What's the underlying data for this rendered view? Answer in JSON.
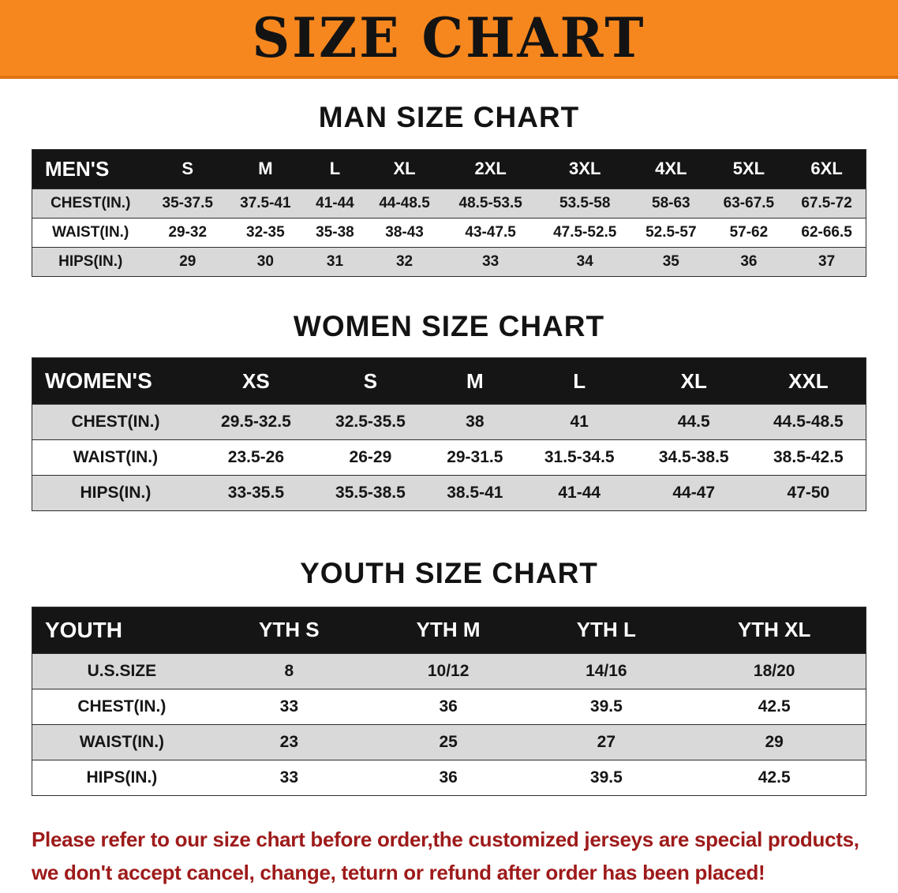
{
  "banner": {
    "title": "SIZE CHART"
  },
  "colors": {
    "banner_orange": "#f6871e",
    "table_header_black": "#151515",
    "row_stripe_gray": "#d9d9d9",
    "note_red": "#9e1a1a"
  },
  "chart_data": [
    {
      "type": "table",
      "title": "MAN SIZE CHART",
      "header": [
        "MEN'S",
        "S",
        "M",
        "L",
        "XL",
        "2XL",
        "3XL",
        "4XL",
        "5XL",
        "6XL"
      ],
      "rows": [
        [
          "CHEST(IN.)",
          "35-37.5",
          "37.5-41",
          "41-44",
          "44-48.5",
          "48.5-53.5",
          "53.5-58",
          "58-63",
          "63-67.5",
          "67.5-72"
        ],
        [
          "WAIST(IN.)",
          "29-32",
          "32-35",
          "35-38",
          "38-43",
          "43-47.5",
          "47.5-52.5",
          "52.5-57",
          "57-62",
          "62-66.5"
        ],
        [
          "HIPS(IN.)",
          "29",
          "30",
          "31",
          "32",
          "33",
          "34",
          "35",
          "36",
          "37"
        ]
      ]
    },
    {
      "type": "table",
      "title": "WOMEN SIZE CHART",
      "header": [
        "WOMEN'S",
        "XS",
        "S",
        "M",
        "L",
        "XL",
        "XXL"
      ],
      "rows": [
        [
          "CHEST(IN.)",
          "29.5-32.5",
          "32.5-35.5",
          "38",
          "41",
          "44.5",
          "44.5-48.5"
        ],
        [
          "WAIST(IN.)",
          "23.5-26",
          "26-29",
          "29-31.5",
          "31.5-34.5",
          "34.5-38.5",
          "38.5-42.5"
        ],
        [
          "HIPS(IN.)",
          "33-35.5",
          "35.5-38.5",
          "38.5-41",
          "41-44",
          "44-47",
          "47-50"
        ]
      ]
    },
    {
      "type": "table",
      "title": "YOUTH SIZE CHART",
      "header": [
        "YOUTH",
        "YTH S",
        "YTH M",
        "YTH L",
        "YTH XL"
      ],
      "rows": [
        [
          "U.S.SIZE",
          "8",
          "10/12",
          "14/16",
          "18/20"
        ],
        [
          "CHEST(IN.)",
          "33",
          "36",
          "39.5",
          "42.5"
        ],
        [
          "WAIST(IN.)",
          "23",
          "25",
          "27",
          "29"
        ],
        [
          "HIPS(IN.)",
          "33",
          "36",
          "39.5",
          "42.5"
        ]
      ]
    }
  ],
  "footer_note": {
    "line1": "Please refer to our size chart before order,the customized jerseys are special products,",
    "line2": "we don't accept cancel, change, teturn or refund after order has been placed!"
  }
}
